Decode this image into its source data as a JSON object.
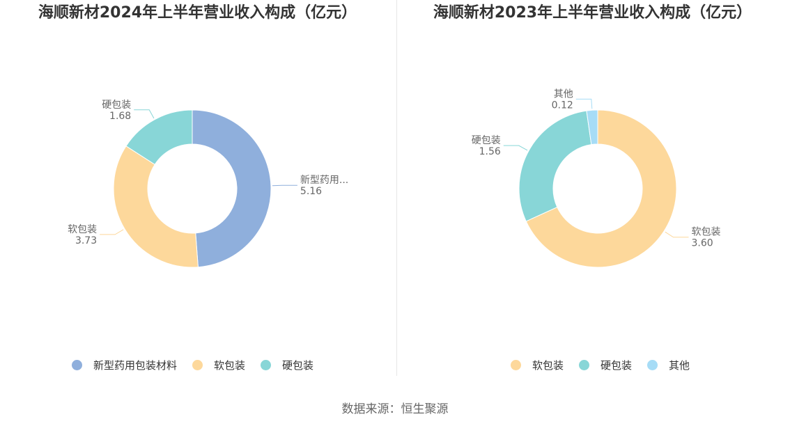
{
  "source": "数据来源：恒生聚源",
  "chart_data": [
    {
      "type": "pie",
      "title": "海顺新材2024年上半年营业收入构成（亿元）",
      "donut": true,
      "legend_position": "bottom",
      "slices": [
        {
          "name": "新型药用包装材料",
          "label": "新型药用...",
          "value": 5.16,
          "value_label": "5.16",
          "color": "#8fafdc"
        },
        {
          "name": "软包装",
          "label": "软包装",
          "value": 3.73,
          "value_label": "3.73",
          "color": "#fdd89b"
        },
        {
          "name": "硬包装",
          "label": "硬包装",
          "value": 1.68,
          "value_label": "1.68",
          "color": "#88d6d7"
        }
      ]
    },
    {
      "type": "pie",
      "title": "海顺新材2023年上半年营业收入构成（亿元）",
      "donut": true,
      "legend_position": "bottom",
      "slices": [
        {
          "name": "软包装",
          "label": "软包装",
          "value": 3.6,
          "value_label": "3.60",
          "color": "#fdd89b"
        },
        {
          "name": "硬包装",
          "label": "硬包装",
          "value": 1.56,
          "value_label": "1.56",
          "color": "#88d6d7"
        },
        {
          "name": "其他",
          "label": "其他",
          "value": 0.12,
          "value_label": "0.12",
          "color": "#a6dcf6"
        }
      ]
    }
  ]
}
